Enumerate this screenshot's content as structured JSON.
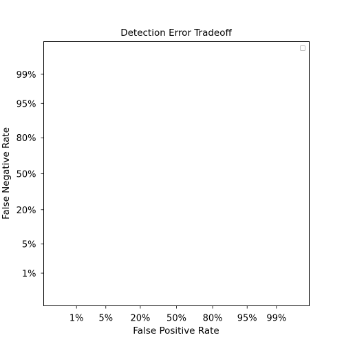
{
  "chart_data": {
    "type": "line",
    "title": "Detection Error Tradeoff",
    "xlabel": "False Positive Rate",
    "ylabel": "False Negative Rate",
    "x_scale": "probit",
    "y_scale": "probit",
    "xlim": [
      0.001,
      0.999
    ],
    "ylim": [
      0.001,
      0.999
    ],
    "xticks": [
      0.01,
      0.05,
      0.2,
      0.5,
      0.8,
      0.95,
      0.99
    ],
    "xtick_labels": [
      "1%",
      "5%",
      "20%",
      "50%",
      "80%",
      "95%",
      "99%"
    ],
    "yticks": [
      0.01,
      0.05,
      0.2,
      0.5,
      0.8,
      0.95,
      0.99
    ],
    "ytick_labels": [
      "1%",
      "5%",
      "20%",
      "50%",
      "80%",
      "95%",
      "99%"
    ],
    "grid": false,
    "legend": {
      "placement": "top-right",
      "entries": []
    },
    "series": []
  }
}
